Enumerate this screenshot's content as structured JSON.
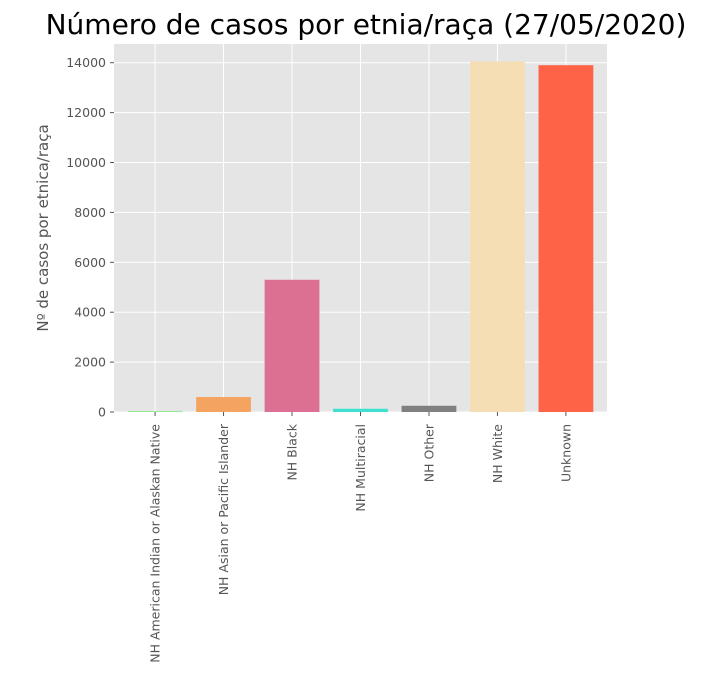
{
  "chart_data": {
    "type": "bar",
    "title": "Número de casos por etnia/raça (27/05/2020)",
    "xlabel": "",
    "ylabel": "Nº de casos por etnica/raça",
    "categories": [
      "NH American Indian or Alaskan Native",
      "NH Asian or Pacific Islander",
      "NH Black",
      "NH Multiracial",
      "NH Other",
      "NH White",
      "Unknown"
    ],
    "values": [
      40,
      600,
      5300,
      130,
      250,
      14050,
      13900
    ],
    "colors": [
      "#90ee90",
      "#f4a460",
      "#db7093",
      "#40e0d0",
      "#808080",
      "#f5deb3",
      "#ff6347"
    ],
    "ylim": [
      0,
      14750
    ],
    "yticks": [
      0,
      2000,
      4000,
      6000,
      8000,
      10000,
      12000,
      14000
    ],
    "grid": true,
    "background": "#e5e5e5",
    "legend": "none"
  }
}
